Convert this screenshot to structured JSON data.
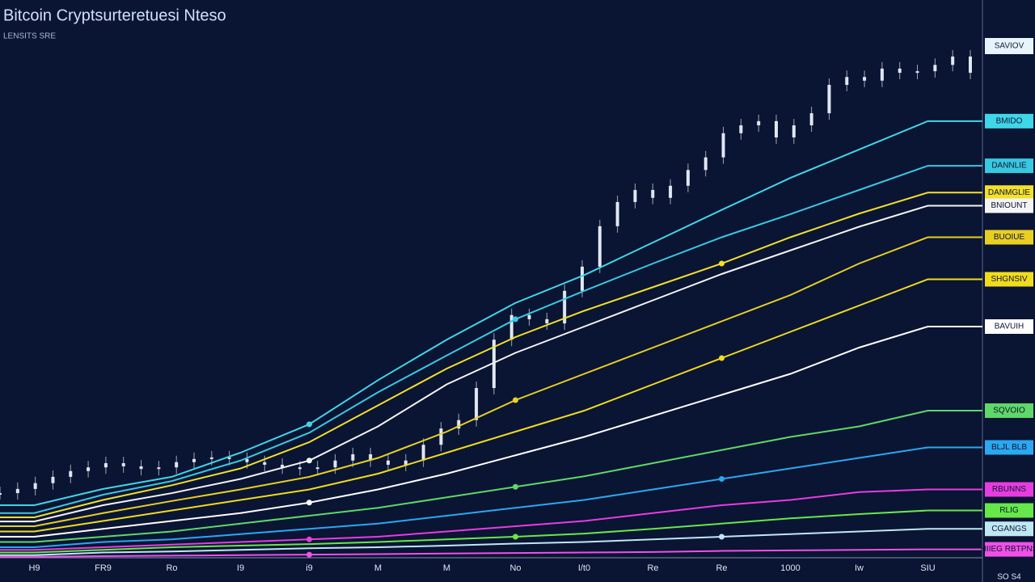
{
  "chart_data": {
    "type": "line",
    "title": "Bitcoin Cryptsurteretuesi Nteso",
    "subtitle": "LENSITS SRE",
    "top_label": "SAVIOV",
    "footer": "SO S4",
    "categories": [
      "H9",
      "FR9",
      "Ro",
      "I9",
      "i9",
      "M",
      "M",
      "No",
      "I/t0",
      "Re",
      "Re",
      "1000",
      "Iw",
      "SIU"
    ],
    "ylim": [
      0,
      100
    ],
    "price": {
      "color": "#dfe7f2",
      "values": [
        12.3,
        13.1,
        14.2,
        15.4,
        16.5,
        17.2,
        18,
        17.4,
        16.9,
        17.2,
        18.2,
        18.8,
        19.1,
        18.8,
        18.2,
        17.7,
        17.2,
        16.9,
        17.2,
        18.5,
        19.7,
        18.5,
        17.7,
        18.5,
        21.5,
        24.6,
        26.2,
        32.3,
        41.5,
        46.2,
        45.4,
        44.6,
        50.8,
        55.4,
        63.1,
        67.7,
        70,
        68.5,
        70.8,
        73.8,
        76.2,
        80.8,
        82.3,
        83.1,
        80,
        82.3,
        84.6,
        90,
        91.5,
        90.8,
        93.1,
        92.3,
        92.6,
        93.8,
        95.4,
        92.3
      ]
    },
    "series": [
      {
        "name": "BMIDO",
        "color": "#3fd6e8",
        "values": [
          10,
          13.1,
          15.4,
          20,
          25.4,
          33.8,
          41.5,
          48.5,
          53.8,
          60,
          66.2,
          72.3,
          77.7,
          83.1
        ]
      },
      {
        "name": "DANNLIE",
        "color": "#38c8e0",
        "values": [
          8.5,
          12,
          14.6,
          18.5,
          23.8,
          31.5,
          38.5,
          45.4,
          50.8,
          56,
          61,
          65.4,
          70,
          74.6
        ]
      },
      {
        "name": "DANMGLIE",
        "color": "#f2e02a",
        "values": [
          7.7,
          11,
          13.8,
          17,
          22,
          29,
          36,
          42,
          47,
          51.5,
          56,
          61,
          65.5,
          69.5
        ]
      },
      {
        "name": "BNIOUNT",
        "color": "#f4f4f4",
        "values": [
          6.9,
          10,
          12.3,
          15,
          18.5,
          25,
          33,
          39,
          44,
          49,
          54,
          58.5,
          63,
          67
        ]
      },
      {
        "name": "BUOIUE",
        "color": "#e8d023",
        "values": [
          6,
          8.5,
          10.8,
          13,
          15.4,
          19,
          24,
          30,
          35,
          40,
          45,
          50,
          56,
          61
        ]
      },
      {
        "name": "SHGNSIV",
        "color": "#f0dc1c",
        "values": [
          5,
          7,
          9,
          11,
          13,
          16,
          20,
          24,
          28,
          33,
          38,
          43,
          48,
          53
        ]
      },
      {
        "name": "BAVUIH",
        "color": "#ffffff",
        "values": [
          4,
          5.5,
          7,
          8.5,
          10.5,
          13,
          16,
          19.5,
          23,
          27,
          31,
          35,
          40,
          44
        ]
      },
      {
        "name": "SQVOIO",
        "color": "#5ed868",
        "values": [
          3,
          4,
          5,
          6.5,
          8,
          9.5,
          11.5,
          13.5,
          15.5,
          18,
          20.5,
          23,
          25,
          28
        ]
      },
      {
        "name": "BLJL BLB",
        "color": "#2aa8f0",
        "values": [
          2,
          3,
          3.5,
          4.5,
          5.5,
          6.5,
          8,
          9.5,
          11,
          13,
          15,
          17,
          19,
          21
        ]
      },
      {
        "name": "RBUNNS",
        "color": "#e83ce0",
        "values": [
          1.5,
          2,
          2.5,
          3,
          3.5,
          4,
          5,
          6,
          7,
          8.5,
          10,
          11,
          12.5,
          13
        ]
      },
      {
        "name": "RLIG",
        "color": "#66e84a",
        "values": [
          1,
          1.5,
          2,
          2.3,
          2.6,
          3,
          3.5,
          4,
          4.6,
          5.5,
          6.5,
          7.5,
          8.3,
          9
        ]
      },
      {
        "name": "CGANGS",
        "color": "#bfe8f4",
        "values": [
          0.5,
          1,
          1.2,
          1.5,
          1.8,
          2,
          2.3,
          2.7,
          3,
          3.5,
          4,
          4.5,
          5,
          5.5
        ]
      },
      {
        "name": "HIIEG RBTPNS",
        "color": "#f050e8",
        "values": [
          0.2,
          0.3,
          0.4,
          0.5,
          0.6,
          0.7,
          0.8,
          0.9,
          1,
          1.1,
          1.3,
          1.4,
          1.5,
          1.6
        ]
      }
    ]
  }
}
